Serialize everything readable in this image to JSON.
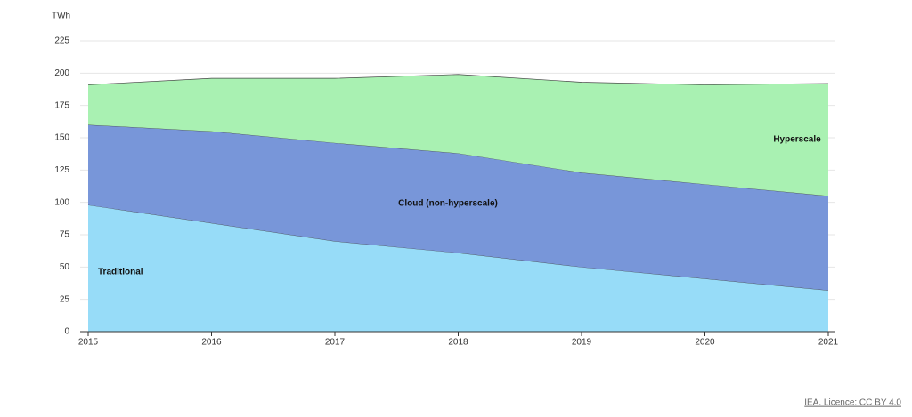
{
  "chart_data": {
    "type": "stacked_area",
    "y_axis_label": "TWh",
    "categories": [
      "2015",
      "2016",
      "2017",
      "2018",
      "2019",
      "2020",
      "2021"
    ],
    "series": [
      {
        "name": "Traditional",
        "color": "#97dcf8",
        "values": [
          98,
          84,
          70,
          61,
          50,
          41,
          32
        ]
      },
      {
        "name": "Cloud (non-hyperscale)",
        "color": "#7896d9",
        "values": [
          62,
          71,
          76,
          77,
          73,
          73,
          73
        ]
      },
      {
        "name": "Hyperscale",
        "color": "#a9f1b2",
        "values": [
          31,
          41,
          50,
          61,
          70,
          77,
          87
        ]
      }
    ],
    "ylim": [
      0,
      225
    ],
    "yticks": [
      0,
      25,
      50,
      75,
      100,
      125,
      150,
      175,
      200,
      225
    ],
    "grid": true,
    "source": "IEA. Licence: CC BY 4.0"
  }
}
